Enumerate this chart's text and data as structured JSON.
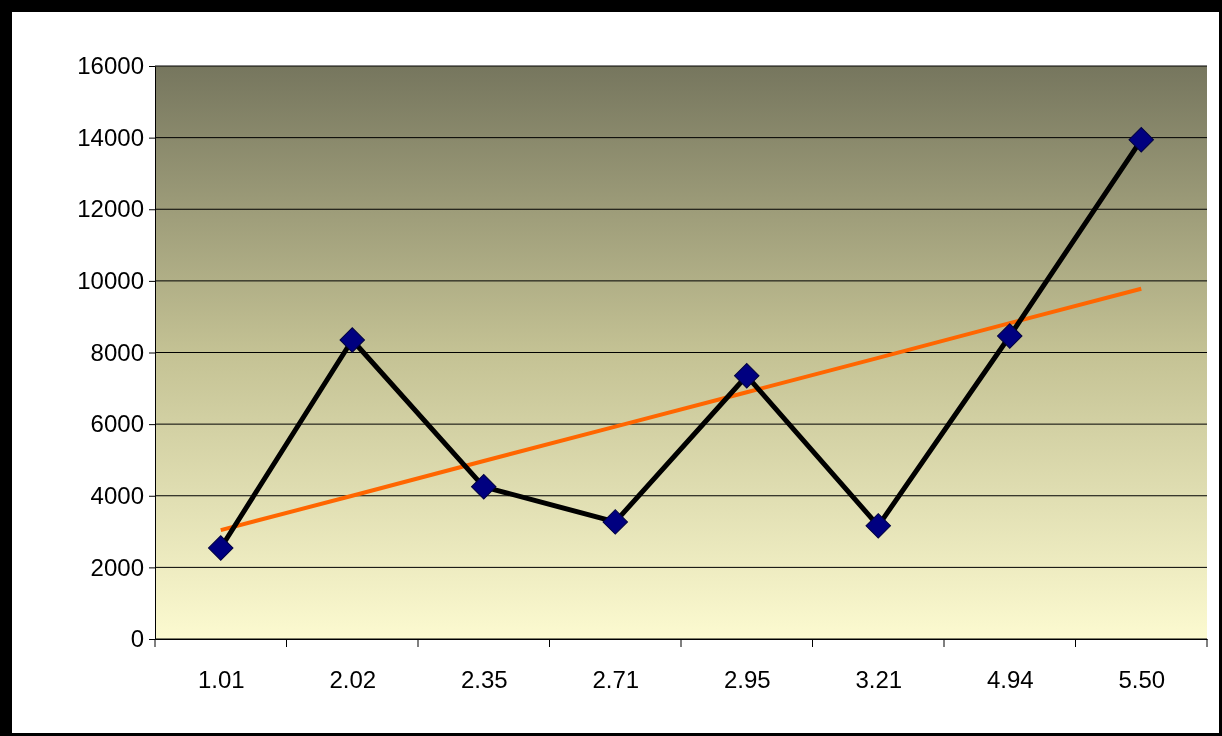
{
  "chart_data": {
    "type": "line",
    "categories": [
      "1.01",
      "2.02",
      "2.35",
      "2.71",
      "2.95",
      "3.21",
      "4.94",
      "5.50"
    ],
    "series": [
      {
        "color": "#000000",
        "marker": "diamond",
        "values": [
          2540,
          8350,
          4250,
          3270,
          7350,
          3160,
          8460,
          13940
        ]
      },
      {
        "color": "#ff6600",
        "marker": "none",
        "values": [
          3040,
          4000,
          4970,
          5930,
          6890,
          7850,
          8820,
          9780
        ]
      }
    ],
    "ylim": [
      0,
      16000
    ],
    "yticks": [
      0,
      2000,
      4000,
      6000,
      8000,
      10000,
      12000,
      14000,
      16000
    ],
    "grid": "y"
  }
}
